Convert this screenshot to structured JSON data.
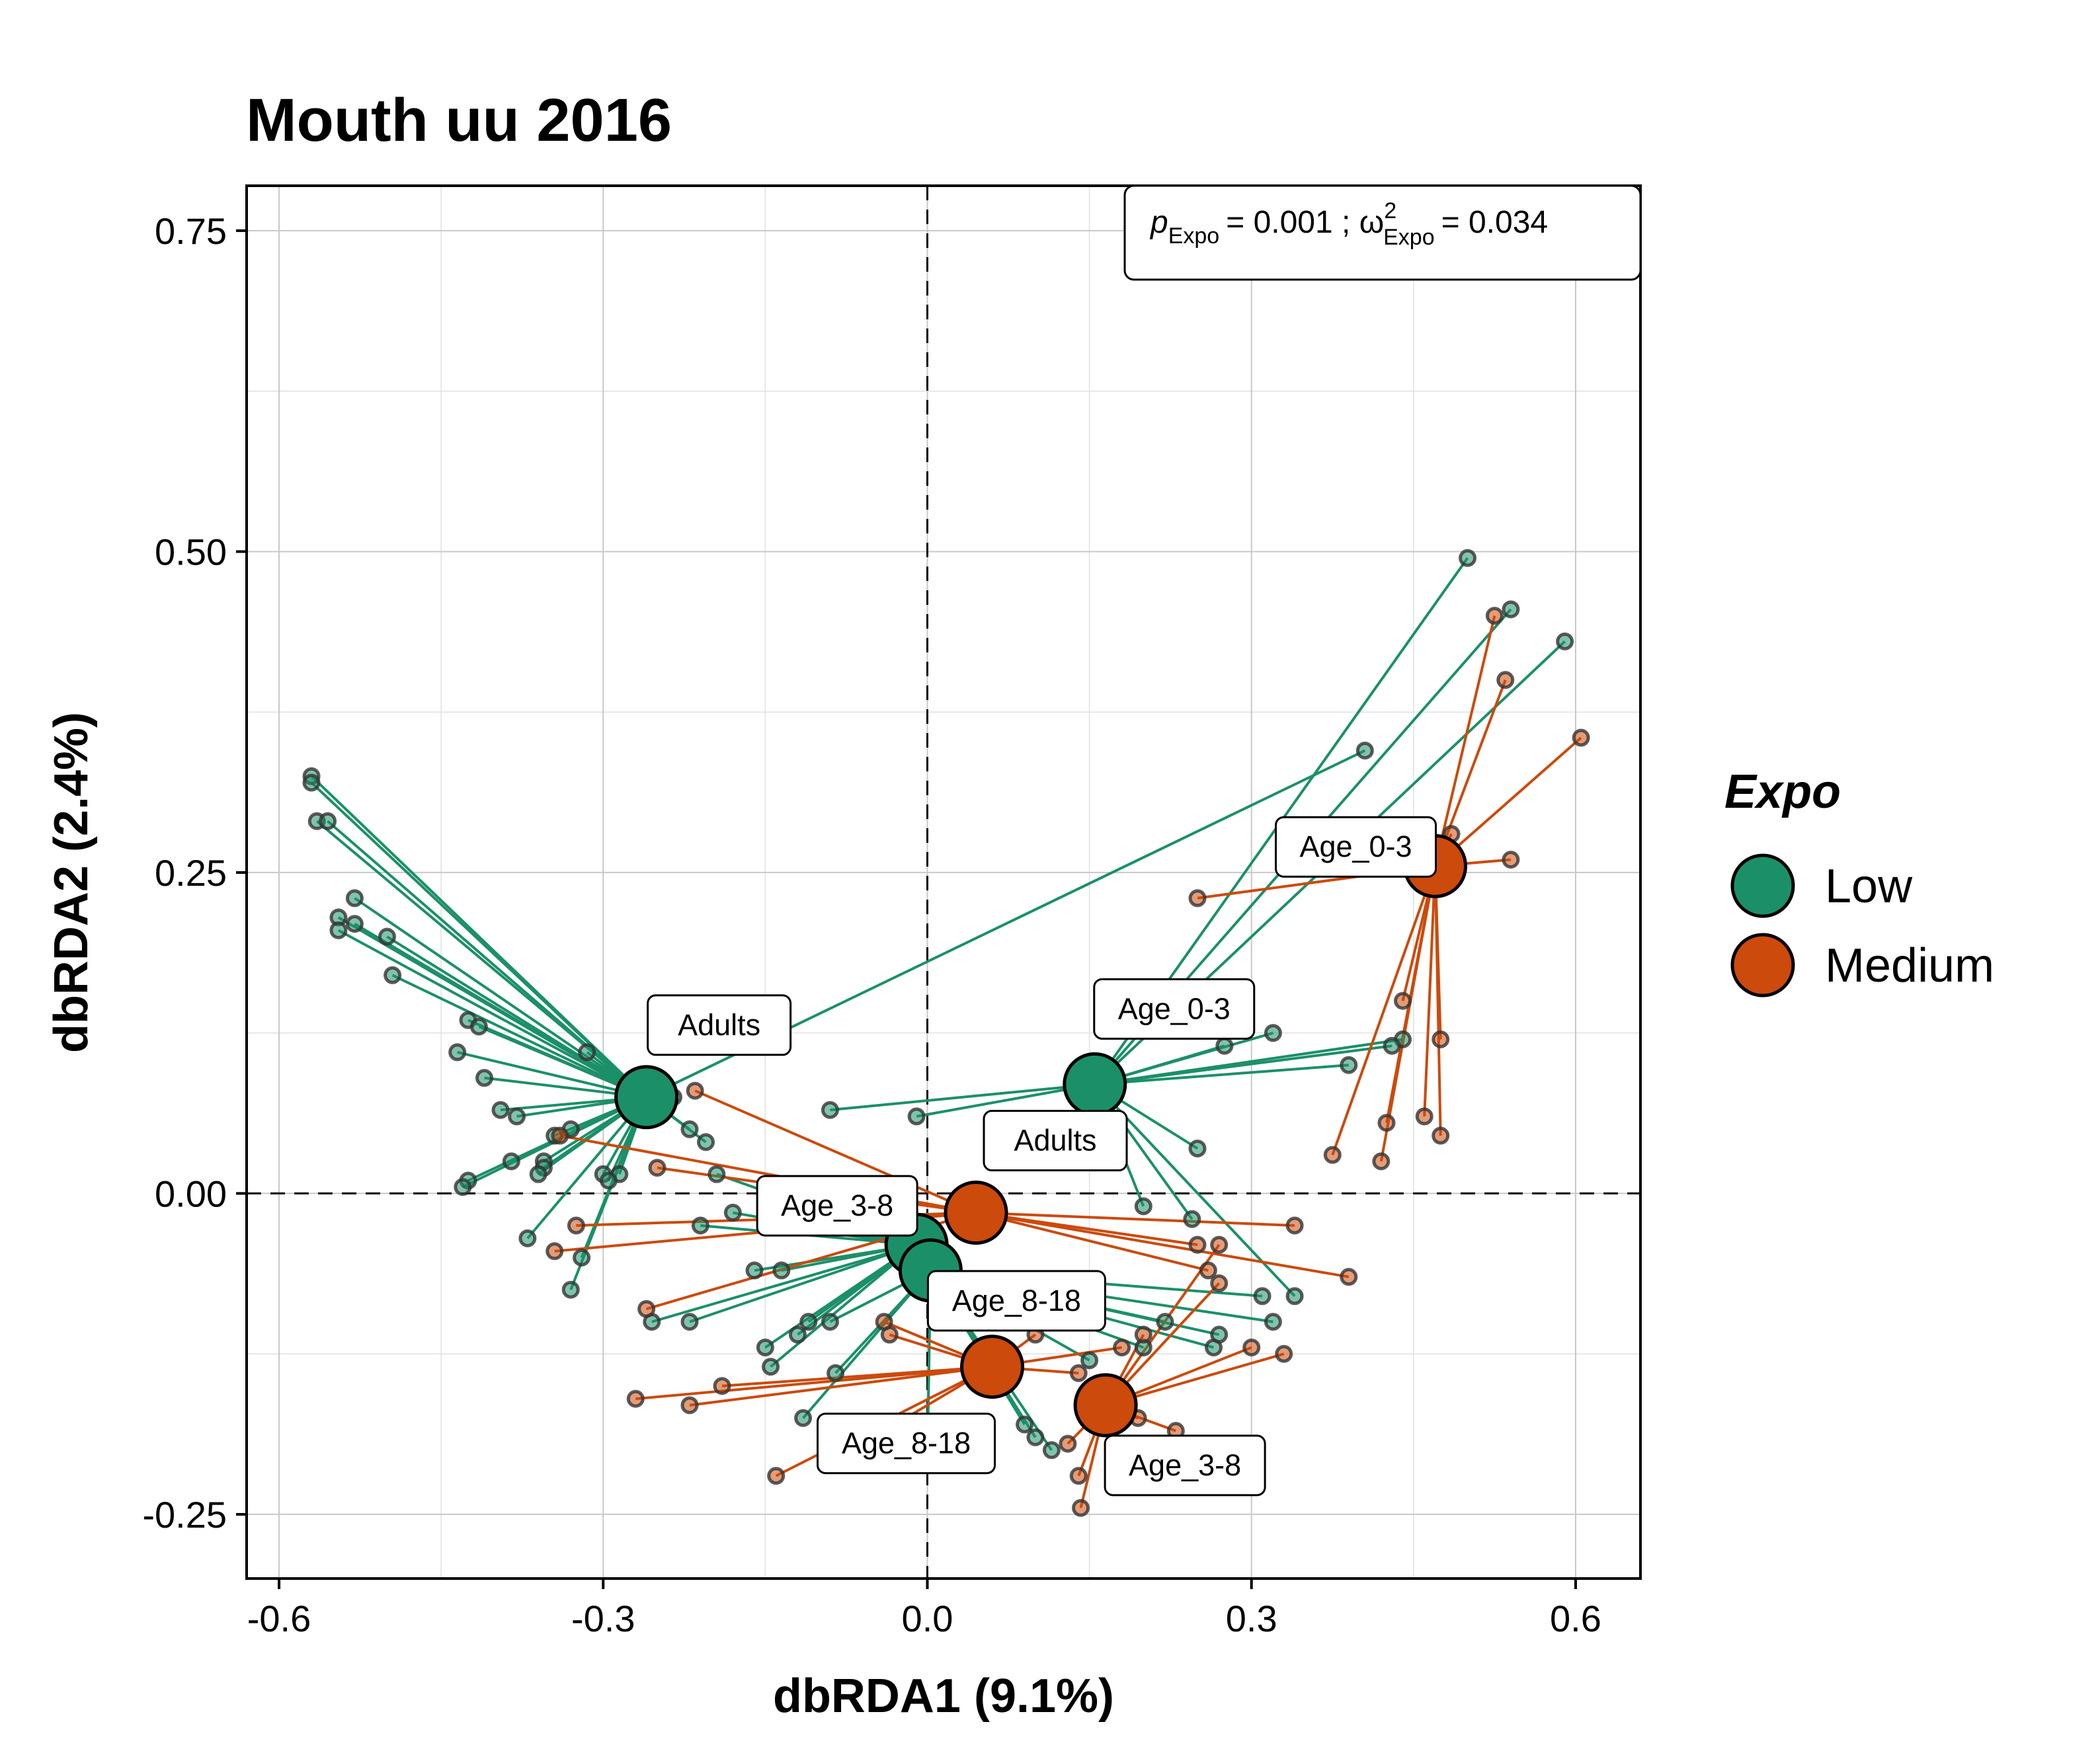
{
  "chart_data": {
    "type": "scatter",
    "title": "Mouth uu 2016",
    "xlabel": "dbRDA1 (9.1%)",
    "ylabel": "dbRDA2 (2.4%)",
    "xlim": [
      -0.63,
      0.66
    ],
    "ylim": [
      -0.3,
      0.785
    ],
    "x_ticks": [
      -0.6,
      -0.3,
      0.0,
      0.3,
      0.6
    ],
    "x_tick_labels": [
      "-0.6",
      "-0.3",
      "0.0",
      "0.3",
      "0.6"
    ],
    "y_ticks": [
      -0.25,
      0.0,
      0.25,
      0.5,
      0.75
    ],
    "y_tick_labels": [
      "-0.25",
      "0.00",
      "0.25",
      "0.50",
      "0.75"
    ],
    "grid": true,
    "reference_lines": {
      "x": 0,
      "y": 0,
      "style": "dashed"
    },
    "annotation": {
      "p_symbol": "p",
      "p_subscript": "Expo",
      "p_value": "= 0.001 ; ",
      "omega_symbol": "ω",
      "omega_superscript": "2",
      "omega_subscript": "Expo",
      "omega_value": "= 0.034"
    },
    "legend": {
      "title": "Expo",
      "position": "right"
    },
    "series": [
      {
        "name": "Low",
        "color": "#1b9068",
        "centroids": [
          {
            "label": "Adults",
            "x": -0.26,
            "y": 0.075
          },
          {
            "label": "Age_0-3",
            "x": 0.155,
            "y": 0.085
          },
          {
            "label": "Age_3-8",
            "x": -0.01,
            "y": -0.04
          },
          {
            "label": "Age_8-18",
            "x": 0.003,
            "y": -0.06
          }
        ],
        "points": [
          {
            "c": 0,
            "x": -0.57,
            "y": 0.325
          },
          {
            "c": 0,
            "x": -0.57,
            "y": 0.32
          },
          {
            "c": 0,
            "x": -0.565,
            "y": 0.29
          },
          {
            "c": 0,
            "x": -0.555,
            "y": 0.29
          },
          {
            "c": 0,
            "x": -0.53,
            "y": 0.23
          },
          {
            "c": 0,
            "x": -0.545,
            "y": 0.215
          },
          {
            "c": 0,
            "x": -0.53,
            "y": 0.21
          },
          {
            "c": 0,
            "x": -0.545,
            "y": 0.205
          },
          {
            "c": 0,
            "x": -0.5,
            "y": 0.2
          },
          {
            "c": 0,
            "x": -0.495,
            "y": 0.17
          },
          {
            "c": 0,
            "x": -0.425,
            "y": 0.135
          },
          {
            "c": 0,
            "x": -0.415,
            "y": 0.13
          },
          {
            "c": 0,
            "x": -0.435,
            "y": 0.11
          },
          {
            "c": 0,
            "x": -0.41,
            "y": 0.09
          },
          {
            "c": 0,
            "x": -0.395,
            "y": 0.065
          },
          {
            "c": 0,
            "x": -0.38,
            "y": 0.06
          },
          {
            "c": 0,
            "x": -0.315,
            "y": 0.11
          },
          {
            "c": 0,
            "x": -0.33,
            "y": 0.05
          },
          {
            "c": 0,
            "x": -0.345,
            "y": 0.045
          },
          {
            "c": 0,
            "x": -0.385,
            "y": 0.025
          },
          {
            "c": 0,
            "x": -0.355,
            "y": 0.025
          },
          {
            "c": 0,
            "x": -0.355,
            "y": 0.02
          },
          {
            "c": 0,
            "x": -0.36,
            "y": 0.015
          },
          {
            "c": 0,
            "x": -0.425,
            "y": 0.01
          },
          {
            "c": 0,
            "x": -0.43,
            "y": 0.005
          },
          {
            "c": 0,
            "x": -0.3,
            "y": 0.015
          },
          {
            "c": 0,
            "x": -0.285,
            "y": 0.015
          },
          {
            "c": 0,
            "x": -0.37,
            "y": -0.035
          },
          {
            "c": 0,
            "x": -0.32,
            "y": -0.05
          },
          {
            "c": 0,
            "x": -0.33,
            "y": -0.075
          },
          {
            "c": 0,
            "x": -0.235,
            "y": 0.075
          },
          {
            "c": 0,
            "x": -0.22,
            "y": 0.05
          },
          {
            "c": 0,
            "x": -0.205,
            "y": 0.04
          },
          {
            "c": 0,
            "x": -0.295,
            "y": 0.01
          },
          {
            "c": 0,
            "x": 0.405,
            "y": 0.345
          },
          {
            "c": 1,
            "x": 0.5,
            "y": 0.495
          },
          {
            "c": 1,
            "x": 0.54,
            "y": 0.455
          },
          {
            "c": 1,
            "x": 0.59,
            "y": 0.43
          },
          {
            "c": 1,
            "x": 0.44,
            "y": 0.12
          },
          {
            "c": 1,
            "x": 0.43,
            "y": 0.115
          },
          {
            "c": 1,
            "x": 0.39,
            "y": 0.1
          },
          {
            "c": 1,
            "x": 0.32,
            "y": 0.125
          },
          {
            "c": 1,
            "x": 0.275,
            "y": 0.115
          },
          {
            "c": 1,
            "x": 0.25,
            "y": 0.035
          },
          {
            "c": 1,
            "x": -0.01,
            "y": 0.06
          },
          {
            "c": 1,
            "x": -0.09,
            "y": 0.065
          },
          {
            "c": 1,
            "x": 0.2,
            "y": -0.01
          },
          {
            "c": 1,
            "x": 0.245,
            "y": -0.02
          },
          {
            "c": 1,
            "x": 0.34,
            "y": -0.08
          },
          {
            "c": 2,
            "x": -0.195,
            "y": 0.015
          },
          {
            "c": 2,
            "x": -0.18,
            "y": -0.015
          },
          {
            "c": 2,
            "x": -0.14,
            "y": -0.025
          },
          {
            "c": 2,
            "x": -0.12,
            "y": -0.02
          },
          {
            "c": 2,
            "x": -0.21,
            "y": -0.025
          },
          {
            "c": 2,
            "x": -0.16,
            "y": -0.06
          },
          {
            "c": 2,
            "x": -0.135,
            "y": -0.06
          },
          {
            "c": 2,
            "x": -0.22,
            "y": -0.1
          },
          {
            "c": 2,
            "x": -0.255,
            "y": -0.1
          },
          {
            "c": 2,
            "x": -0.15,
            "y": -0.12
          },
          {
            "c": 2,
            "x": -0.145,
            "y": -0.135
          },
          {
            "c": 2,
            "x": -0.12,
            "y": -0.11
          },
          {
            "c": 2,
            "x": -0.11,
            "y": -0.1
          },
          {
            "c": 3,
            "x": -0.115,
            "y": -0.175
          },
          {
            "c": 3,
            "x": -0.085,
            "y": -0.14
          },
          {
            "c": 3,
            "x": -0.09,
            "y": -0.1
          },
          {
            "c": 3,
            "x": 0.1,
            "y": -0.19
          },
          {
            "c": 3,
            "x": 0.115,
            "y": -0.2
          },
          {
            "c": 3,
            "x": 0.09,
            "y": -0.18
          },
          {
            "c": 3,
            "x": 0.0,
            "y": -0.21
          },
          {
            "c": 3,
            "x": 0.15,
            "y": -0.13
          },
          {
            "c": 3,
            "x": 0.2,
            "y": -0.12
          },
          {
            "c": 3,
            "x": 0.22,
            "y": -0.1
          },
          {
            "c": 3,
            "x": 0.265,
            "y": -0.12
          },
          {
            "c": 3,
            "x": 0.27,
            "y": -0.11
          },
          {
            "c": 3,
            "x": 0.32,
            "y": -0.1
          },
          {
            "c": 3,
            "x": 0.31,
            "y": -0.08
          }
        ]
      },
      {
        "name": "Medium",
        "color": "#cc4a0b",
        "centroids": [
          {
            "label": "Adults",
            "x": 0.045,
            "y": -0.015
          },
          {
            "label": "Age_0-3",
            "x": 0.47,
            "y": 0.255
          },
          {
            "label": "Age_3-8",
            "x": 0.165,
            "y": -0.165
          },
          {
            "label": "Age_8-18",
            "x": 0.06,
            "y": -0.135
          }
        ],
        "points": [
          {
            "c": 0,
            "x": -0.215,
            "y": 0.08
          },
          {
            "c": 0,
            "x": -0.34,
            "y": 0.045
          },
          {
            "c": 0,
            "x": -0.25,
            "y": 0.02
          },
          {
            "c": 0,
            "x": -0.325,
            "y": -0.025
          },
          {
            "c": 0,
            "x": -0.345,
            "y": -0.045
          },
          {
            "c": 0,
            "x": -0.26,
            "y": -0.09
          },
          {
            "c": 0,
            "x": 0.26,
            "y": -0.06
          },
          {
            "c": 0,
            "x": 0.39,
            "y": -0.065
          },
          {
            "c": 0,
            "x": 0.34,
            "y": -0.025
          },
          {
            "c": 0,
            "x": 0.25,
            "y": -0.04
          },
          {
            "c": 1,
            "x": 0.525,
            "y": 0.45
          },
          {
            "c": 1,
            "x": 0.535,
            "y": 0.4
          },
          {
            "c": 1,
            "x": 0.605,
            "y": 0.355
          },
          {
            "c": 1,
            "x": 0.54,
            "y": 0.26
          },
          {
            "c": 1,
            "x": 0.485,
            "y": 0.28
          },
          {
            "c": 1,
            "x": 0.38,
            "y": 0.255
          },
          {
            "c": 1,
            "x": 0.44,
            "y": 0.15
          },
          {
            "c": 1,
            "x": 0.475,
            "y": 0.12
          },
          {
            "c": 1,
            "x": 0.46,
            "y": 0.06
          },
          {
            "c": 1,
            "x": 0.475,
            "y": 0.045
          },
          {
            "c": 1,
            "x": 0.425,
            "y": 0.055
          },
          {
            "c": 1,
            "x": 0.42,
            "y": 0.025
          },
          {
            "c": 1,
            "x": 0.375,
            "y": 0.03
          },
          {
            "c": 1,
            "x": 0.25,
            "y": 0.23
          },
          {
            "c": 2,
            "x": 0.14,
            "y": -0.22
          },
          {
            "c": 2,
            "x": 0.142,
            "y": -0.245
          },
          {
            "c": 2,
            "x": 0.13,
            "y": -0.195
          },
          {
            "c": 2,
            "x": 0.195,
            "y": -0.175
          },
          {
            "c": 2,
            "x": 0.23,
            "y": -0.185
          },
          {
            "c": 2,
            "x": 0.27,
            "y": -0.07
          },
          {
            "c": 2,
            "x": 0.3,
            "y": -0.12
          },
          {
            "c": 2,
            "x": 0.33,
            "y": -0.125
          },
          {
            "c": 2,
            "x": 0.2,
            "y": -0.11
          },
          {
            "c": 2,
            "x": 0.27,
            "y": -0.04
          },
          {
            "c": 3,
            "x": -0.27,
            "y": -0.16
          },
          {
            "c": 3,
            "x": -0.22,
            "y": -0.165
          },
          {
            "c": 3,
            "x": -0.19,
            "y": -0.15
          },
          {
            "c": 3,
            "x": -0.14,
            "y": -0.22
          },
          {
            "c": 3,
            "x": -0.07,
            "y": -0.2
          },
          {
            "c": 3,
            "x": -0.035,
            "y": -0.11
          },
          {
            "c": 3,
            "x": -0.04,
            "y": -0.1
          },
          {
            "c": 3,
            "x": 0.18,
            "y": -0.12
          },
          {
            "c": 3,
            "x": 0.1,
            "y": -0.11
          },
          {
            "c": 3,
            "x": 0.14,
            "y": -0.14
          }
        ]
      }
    ]
  }
}
